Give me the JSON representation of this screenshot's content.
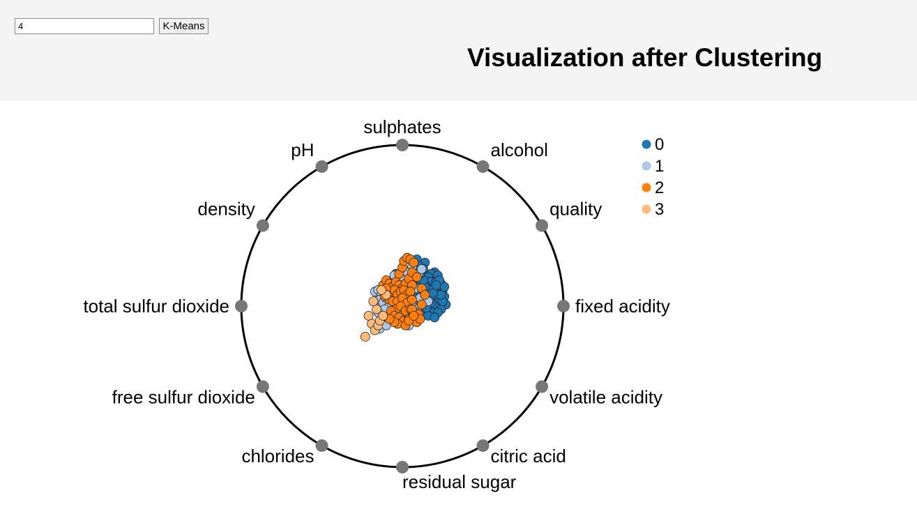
{
  "controls": {
    "cluster_count_value": "4",
    "run_button_label": "K-Means"
  },
  "header": {
    "title": "Visualization after Clustering"
  },
  "chart_data": {
    "type": "scatter",
    "subtype": "radviz",
    "title": "Visualization after Clustering",
    "anchors": [
      "fixed acidity",
      "volatile acidity",
      "citric acid",
      "residual sugar",
      "chlorides",
      "free sulfur dioxide",
      "total sulfur dioxide",
      "density",
      "pH",
      "sulphates",
      "alcohol",
      "quality"
    ],
    "anchor_color": "#777777",
    "legend": {
      "placement": "top-right",
      "entries": [
        {
          "label": "0",
          "color": "#1f77b4"
        },
        {
          "label": "1",
          "color": "#aec7e8"
        },
        {
          "label": "2",
          "color": "#ff7f0e"
        },
        {
          "label": "3",
          "color": "#ffbb78"
        }
      ]
    },
    "series": [
      {
        "name": "0",
        "color": "#1f77b4",
        "x": [
          0.08,
          0.09,
          0.14,
          0.13,
          0.1,
          0.2,
          0.18,
          0.16,
          0.22,
          0.24,
          0.25,
          0.23,
          0.19,
          0.12,
          0.06,
          0.04,
          0.11,
          0.17,
          0.21,
          0.15,
          0.26,
          0.27,
          0.14,
          0.08,
          0.05,
          0.12,
          0.18,
          0.22,
          0.2,
          0.24,
          0.1,
          0.16,
          0.13,
          0.19,
          0.07,
          0.03,
          0.15,
          0.21,
          0.25,
          0.11,
          0.17,
          0.09,
          0.23,
          0.2,
          0.14,
          0.18,
          0.22,
          0.12,
          0.06,
          0.16,
          0.2,
          0.24,
          0.1,
          0.14,
          0.26,
          0.08,
          0.03,
          -0.04,
          -0.02,
          0.02,
          0.05,
          0.09,
          0.13,
          0.17,
          0.15,
          0.19,
          0.23,
          0.11,
          0.07,
          0.21
        ],
        "y": [
          0.21,
          0.29,
          0.27,
          0.23,
          0.25,
          0.21,
          0.2,
          0.18,
          0.19,
          0.14,
          0.1,
          0.08,
          0.12,
          0.17,
          0.21,
          0.14,
          0.14,
          0.15,
          0.15,
          0.12,
          0.06,
          0.01,
          0.09,
          0.11,
          0.08,
          0.05,
          0.07,
          0.04,
          0.0,
          -0.02,
          0.01,
          0.03,
          0.0,
          -0.04,
          0.06,
          0.09,
          -0.01,
          0.11,
          0.03,
          0.09,
          0.1,
          0.17,
          0.13,
          0.07,
          0.05,
          0.02,
          -0.04,
          -0.02,
          0.03,
          -0.06,
          -0.07,
          0.07,
          -0.05,
          0.12,
          0.12,
          0.01,
          0.2,
          0.2,
          0.15,
          0.12,
          0.1,
          0.03,
          0.16,
          0.04,
          -0.01,
          0.08,
          0.16,
          0.2,
          0.17,
          0.13
        ]
      },
      {
        "name": "1",
        "color": "#aec7e8",
        "x": [
          -0.17,
          -0.15,
          -0.13,
          -0.11,
          -0.16,
          -0.14,
          -0.12,
          -0.1,
          -0.08,
          -0.06,
          -0.04,
          -0.09,
          -0.07,
          -0.05,
          -0.13,
          -0.11,
          -0.15,
          -0.14,
          -0.1,
          -0.06,
          -0.03,
          -0.01,
          0.02,
          0.04,
          0.06,
          0.09,
          0.11,
          0.08,
          0.06,
          0.03,
          -0.05,
          0.01,
          0.0,
          0.05,
          0.1,
          0.12,
          0.14,
          0.16
        ],
        "y": [
          0.09,
          0.1,
          0.07,
          0.09,
          0.03,
          0.04,
          0.02,
          0.05,
          0.05,
          0.07,
          0.02,
          -0.01,
          -0.04,
          -0.02,
          -0.07,
          -0.02,
          -0.04,
          -0.14,
          -0.12,
          -0.09,
          -0.11,
          -0.06,
          -0.09,
          -0.12,
          0.0,
          -0.02,
          0.05,
          0.11,
          0.24,
          0.21,
          0.19,
          0.16,
          0.13,
          0.17,
          0.2,
          0.23,
          0.07,
          0.03
        ]
      },
      {
        "name": "2",
        "color": "#ff7f0e",
        "x": [
          -0.12,
          -0.1,
          -0.08,
          -0.06,
          -0.04,
          -0.02,
          0.0,
          0.02,
          0.04,
          0.06,
          -0.09,
          -0.07,
          -0.05,
          -0.03,
          -0.01,
          0.01,
          0.03,
          0.05,
          -0.11,
          -0.08,
          -0.06,
          -0.03,
          0.0,
          0.03,
          0.06,
          -0.04,
          -0.01,
          0.02,
          0.05,
          0.08,
          -0.07,
          -0.05,
          -0.02,
          0.01,
          0.04,
          0.07,
          0.1,
          0.09,
          0.11,
          0.12,
          -0.02,
          0.0,
          0.01,
          0.03,
          0.05,
          0.07,
          0.06,
          0.09,
          0.12,
          0.14,
          -0.03,
          -0.05,
          -0.08,
          0.02,
          0.04,
          0.06,
          -0.1,
          0.07
        ],
        "y": [
          0.13,
          0.16,
          0.14,
          0.12,
          0.15,
          0.13,
          0.11,
          0.14,
          0.17,
          0.13,
          0.1,
          0.08,
          0.1,
          0.07,
          0.09,
          0.1,
          0.07,
          0.09,
          0.06,
          0.04,
          0.03,
          0.03,
          0.05,
          0.02,
          0.04,
          -0.02,
          0.0,
          -0.03,
          -0.02,
          -0.04,
          -0.03,
          -0.06,
          -0.07,
          -0.09,
          -0.08,
          -0.06,
          -0.05,
          -0.1,
          -0.08,
          0.01,
          0.2,
          0.24,
          0.28,
          0.3,
          0.29,
          0.27,
          0.21,
          0.18,
          0.11,
          0.07,
          -0.11,
          -0.1,
          -0.08,
          -0.12,
          -0.09,
          -0.02,
          0.11,
          -0.06
        ]
      },
      {
        "name": "3",
        "color": "#ffbb78",
        "x": [
          -0.21,
          -0.19,
          -0.17,
          -0.15,
          -0.23,
          -0.16,
          -0.14,
          -0.12,
          -0.18,
          -0.1,
          -0.13
        ],
        "y": [
          -0.06,
          -0.11,
          -0.15,
          -0.12,
          -0.19,
          -0.02,
          -0.09,
          -0.06,
          0.03,
          0.07,
          0.1
        ]
      }
    ]
  }
}
